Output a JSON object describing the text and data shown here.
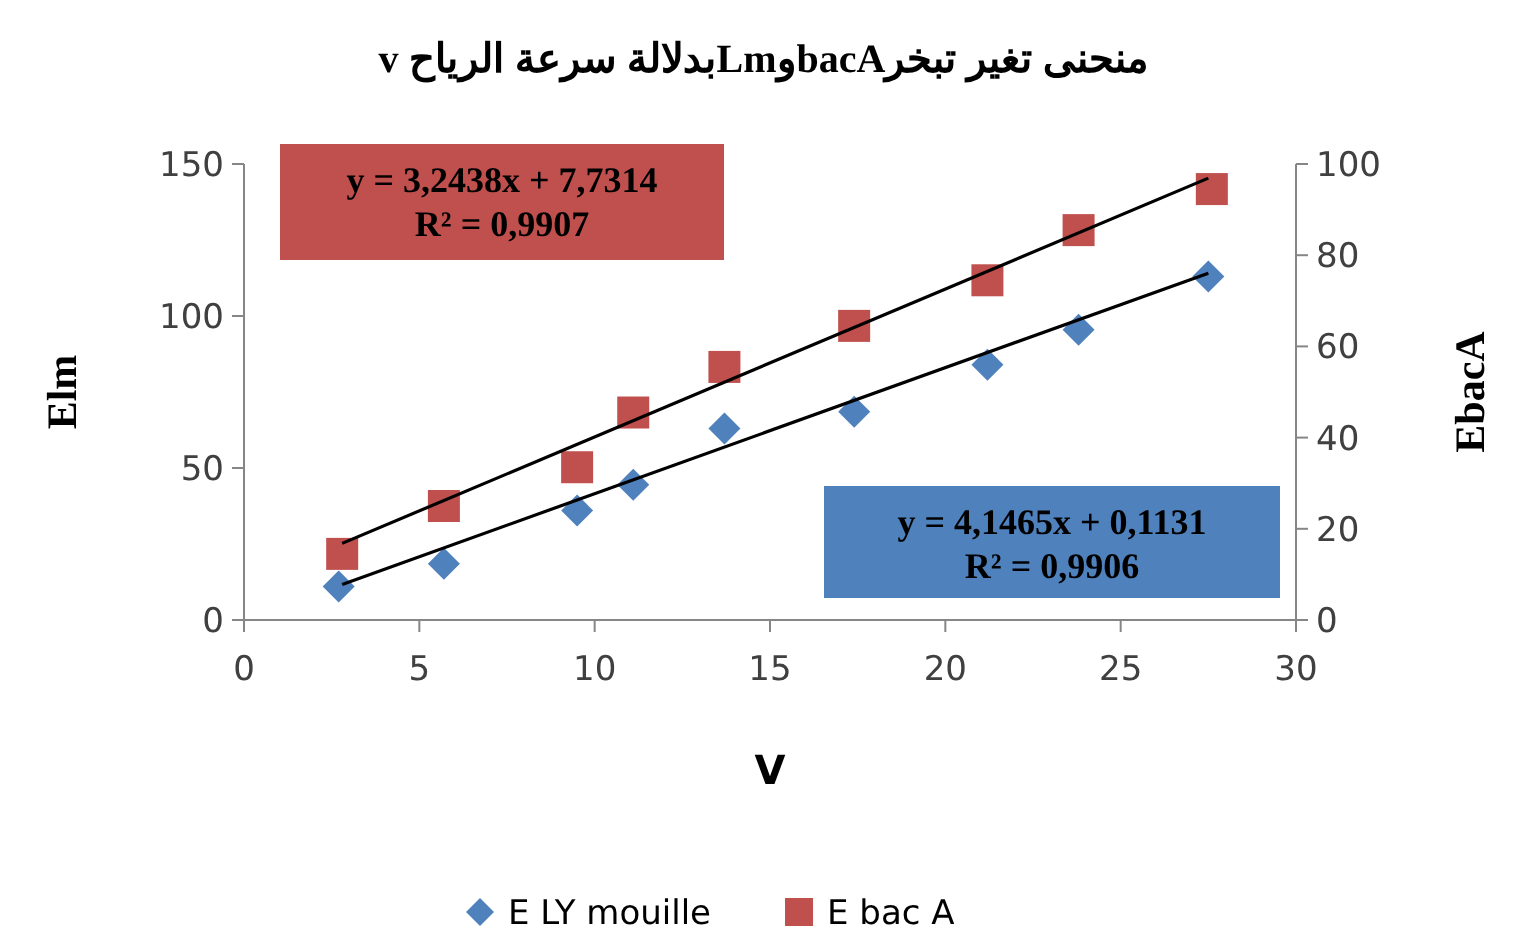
{
  "chart_data": {
    "type": "scatter",
    "title": "منحنى تغير تبخرbacAوLmبدلالة سرعة الرياح v",
    "xlabel": "V",
    "ylabel": "Elm",
    "y2label": "EbacA",
    "xlim": [
      0,
      30
    ],
    "xticks": [
      0,
      5,
      10,
      15,
      20,
      25,
      30
    ],
    "ylim": [
      0,
      150
    ],
    "yticks": [
      0,
      50,
      100,
      150
    ],
    "y2lim": [
      0,
      100
    ],
    "y2ticks": [
      0,
      20,
      40,
      60,
      80,
      100
    ],
    "grid": false,
    "legend": "bottom",
    "series": [
      {
        "name": "E LY mouille",
        "marker": "diamond",
        "color": "#4f81bd",
        "x": [
          2.7,
          5.7,
          9.5,
          11.1,
          13.7,
          17.4,
          21.2,
          23.8,
          27.5
        ],
        "values": [
          11,
          18.5,
          36,
          44.5,
          63,
          68.5,
          84,
          95.5,
          113
        ]
      },
      {
        "name": "E bac A",
        "marker": "square",
        "axis": "y2",
        "color": "#c0504d",
        "x": [
          2.8,
          5.7,
          9.5,
          11.1,
          13.7,
          17.4,
          21.2,
          23.8,
          27.6
        ],
        "values": [
          14.5,
          25,
          33.5,
          45.5,
          55.5,
          64.5,
          74.5,
          85.5,
          94.5
        ]
      },
      {
        "type": "line",
        "color": "#000000",
        "x": [
          2.8,
          27.5
        ],
        "values": [
          11.7,
          114.1
        ]
      },
      {
        "type": "line",
        "axis": "y2",
        "color": "#000000",
        "x": [
          2.8,
          27.5
        ],
        "values": [
          16.8,
          96.9
        ]
      }
    ],
    "annotations": [
      "y = 3,2438x + 7,7314\nR² = 0,9907",
      "y = 4,1465x + 0,1131\nR² = 0,9906"
    ]
  }
}
